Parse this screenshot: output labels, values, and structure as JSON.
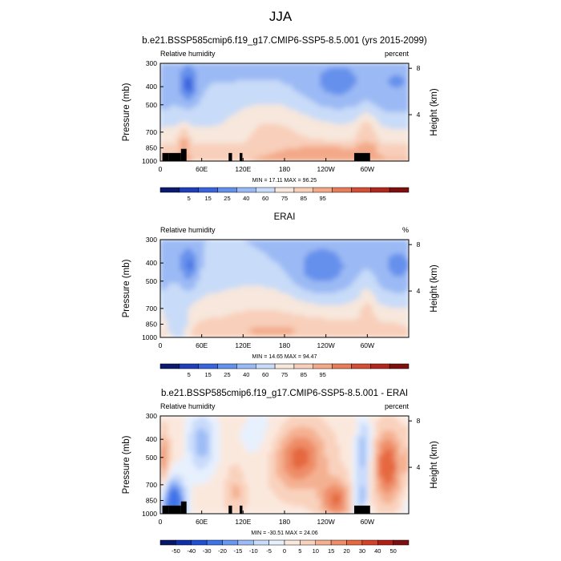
{
  "figure": {
    "title": "JJA"
  },
  "panels": [
    {
      "title": "b.e21.BSSP585cmip6.f19_g17.CMIP6-SSP5-8.5.001 (yrs 2015-2099)",
      "left_label": "Relative humidity",
      "right_label": "percent",
      "minmax": "MIN = 17.11  MAX = 96.25",
      "palette": "rh",
      "colorbar_labels": [
        "5",
        "15",
        "25",
        "40",
        "60",
        "75",
        "85",
        "95"
      ]
    },
    {
      "title": "ERAI",
      "left_label": "Relative humidity",
      "right_label": "%",
      "minmax": "MIN = 14.65  MAX = 94.47",
      "palette": "rh",
      "colorbar_labels": [
        "5",
        "15",
        "25",
        "40",
        "60",
        "75",
        "85",
        "95"
      ]
    },
    {
      "title": "b.e21.BSSP585cmip6.f19_g17.CMIP6-SSP5-8.5.001 - ERAI",
      "left_label": "Relative humidity",
      "right_label": "percent",
      "minmax": "MIN = -30.51  MAX = 24.06",
      "palette": "diff",
      "colorbar_labels": [
        "-50",
        "-40",
        "-30",
        "-20",
        "-15",
        "-10",
        "-5",
        "0",
        "5",
        "10",
        "15",
        "20",
        "30",
        "40",
        "50"
      ]
    }
  ],
  "axes": {
    "ylabel": "Pressure (mb)",
    "y2label": "Height (km)",
    "y_ticks": [
      "300",
      "400",
      "500",
      "700",
      "850",
      "1000"
    ],
    "y2_ticks": [
      "8",
      "4"
    ],
    "x_ticks": [
      "0",
      "60E",
      "120E",
      "180",
      "120W",
      "60W"
    ]
  },
  "colors": {
    "rh": [
      "#0a1a6e",
      "#1f3fb8",
      "#3a64dc",
      "#6590ec",
      "#9bb9f4",
      "#c8dbf8",
      "#f7e7dc",
      "#f8cfba",
      "#f3a988",
      "#e67e5b",
      "#d14f37",
      "#b0281d",
      "#7e0f0f"
    ],
    "diff": [
      "#08166a",
      "#0f2fa5",
      "#1f4fd3",
      "#3f73e8",
      "#6a97f0",
      "#9dbcf6",
      "#c9dbfb",
      "#e7f0fd",
      "#fbe8dd",
      "#f9d2bd",
      "#f4b192",
      "#ee8d68",
      "#e5683f",
      "#d2432a",
      "#b01f16",
      "#7c0f0f"
    ],
    "topography": "#000000"
  },
  "chart_data": [
    {
      "type": "heatmap",
      "title": "b.e21.BSSP585cmip6.f19_g17.CMIP6-SSP5-8.5.001 (yrs 2015-2099)",
      "variable": "Relative humidity",
      "units": "percent",
      "x_longitude_deg": [
        0,
        60,
        120,
        180,
        240,
        300,
        360
      ],
      "y_pressure_mb": [
        300,
        400,
        500,
        700,
        850,
        1000
      ],
      "y_height_km": [
        8,
        4
      ],
      "ylim_mb": [
        1000,
        300
      ],
      "levels": [
        5,
        15,
        25,
        40,
        60,
        75,
        85,
        95
      ],
      "min": 17.11,
      "max": 96.25,
      "features": [
        {
          "lon": 42,
          "pressure_mb": 400,
          "value": 25
        },
        {
          "lon": 250,
          "pressure_mb": 400,
          "value": 30
        },
        {
          "lon": 340,
          "pressure_mb": 430,
          "value": 38
        },
        {
          "lon": 150,
          "pressure_mb": 600,
          "value": 62
        },
        {
          "lon": 240,
          "pressure_mb": 900,
          "value": 94
        }
      ]
    },
    {
      "type": "heatmap",
      "title": "ERAI",
      "variable": "Relative humidity",
      "units": "%",
      "x_longitude_deg": [
        0,
        60,
        120,
        180,
        240,
        300,
        360
      ],
      "y_pressure_mb": [
        300,
        400,
        500,
        700,
        850,
        1000
      ],
      "y_height_km": [
        8,
        4
      ],
      "ylim_mb": [
        1000,
        300
      ],
      "levels": [
        5,
        15,
        25,
        40,
        60,
        75,
        85,
        95
      ],
      "min": 14.65,
      "max": 94.47,
      "features": [
        {
          "lon": 42,
          "pressure_mb": 420,
          "value": 20
        },
        {
          "lon": 235,
          "pressure_mb": 440,
          "value": 15
        },
        {
          "lon": 345,
          "pressure_mb": 440,
          "value": 30
        },
        {
          "lon": 180,
          "pressure_mb": 900,
          "value": 88
        }
      ]
    },
    {
      "type": "heatmap",
      "title": "b.e21.BSSP585cmip6.f19_g17.CMIP6-SSP5-8.5.001 - ERAI",
      "variable": "Relative humidity",
      "units": "percent",
      "x_longitude_deg": [
        0,
        60,
        120,
        180,
        240,
        300,
        360
      ],
      "y_pressure_mb": [
        300,
        400,
        500,
        700,
        850,
        1000
      ],
      "y_height_km": [
        8,
        4
      ],
      "ylim_mb": [
        1000,
        300
      ],
      "levels": [
        -50,
        -40,
        -30,
        -20,
        -15,
        -10,
        -5,
        0,
        5,
        10,
        15,
        20,
        30,
        40,
        50
      ],
      "min": -30.51,
      "max": 24.06,
      "features": [
        {
          "lon": 20,
          "pressure_mb": 900,
          "value": -30
        },
        {
          "lon": 330,
          "pressure_mb": 560,
          "value": 22
        },
        {
          "lon": 200,
          "pressure_mb": 500,
          "value": 20
        },
        {
          "lon": 255,
          "pressure_mb": 850,
          "value": 18
        }
      ]
    }
  ]
}
